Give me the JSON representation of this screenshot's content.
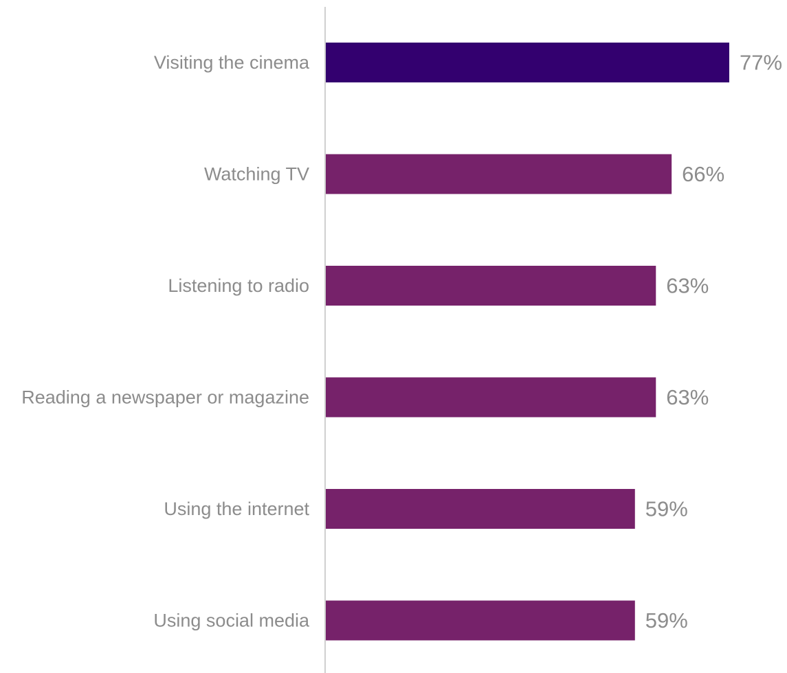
{
  "chart_data": {
    "type": "bar",
    "orientation": "horizontal",
    "categories": [
      "Visiting the cinema",
      "Watching TV",
      "Listening to radio",
      "Reading a newspaper or magazine",
      "Using the internet",
      "Using social media"
    ],
    "values": [
      77,
      66,
      63,
      63,
      59,
      59
    ],
    "value_labels": [
      "77%",
      "66%",
      "63%",
      "63%",
      "59%",
      "59%"
    ],
    "unit": "%",
    "xlim": [
      0,
      77
    ],
    "grid": false,
    "legend": "none",
    "highlight_index": 0,
    "colors": {
      "highlight": "#33006f",
      "bar": "#76226a",
      "axis_line": "#d0d0d0",
      "text": "#8c8c8c"
    }
  }
}
